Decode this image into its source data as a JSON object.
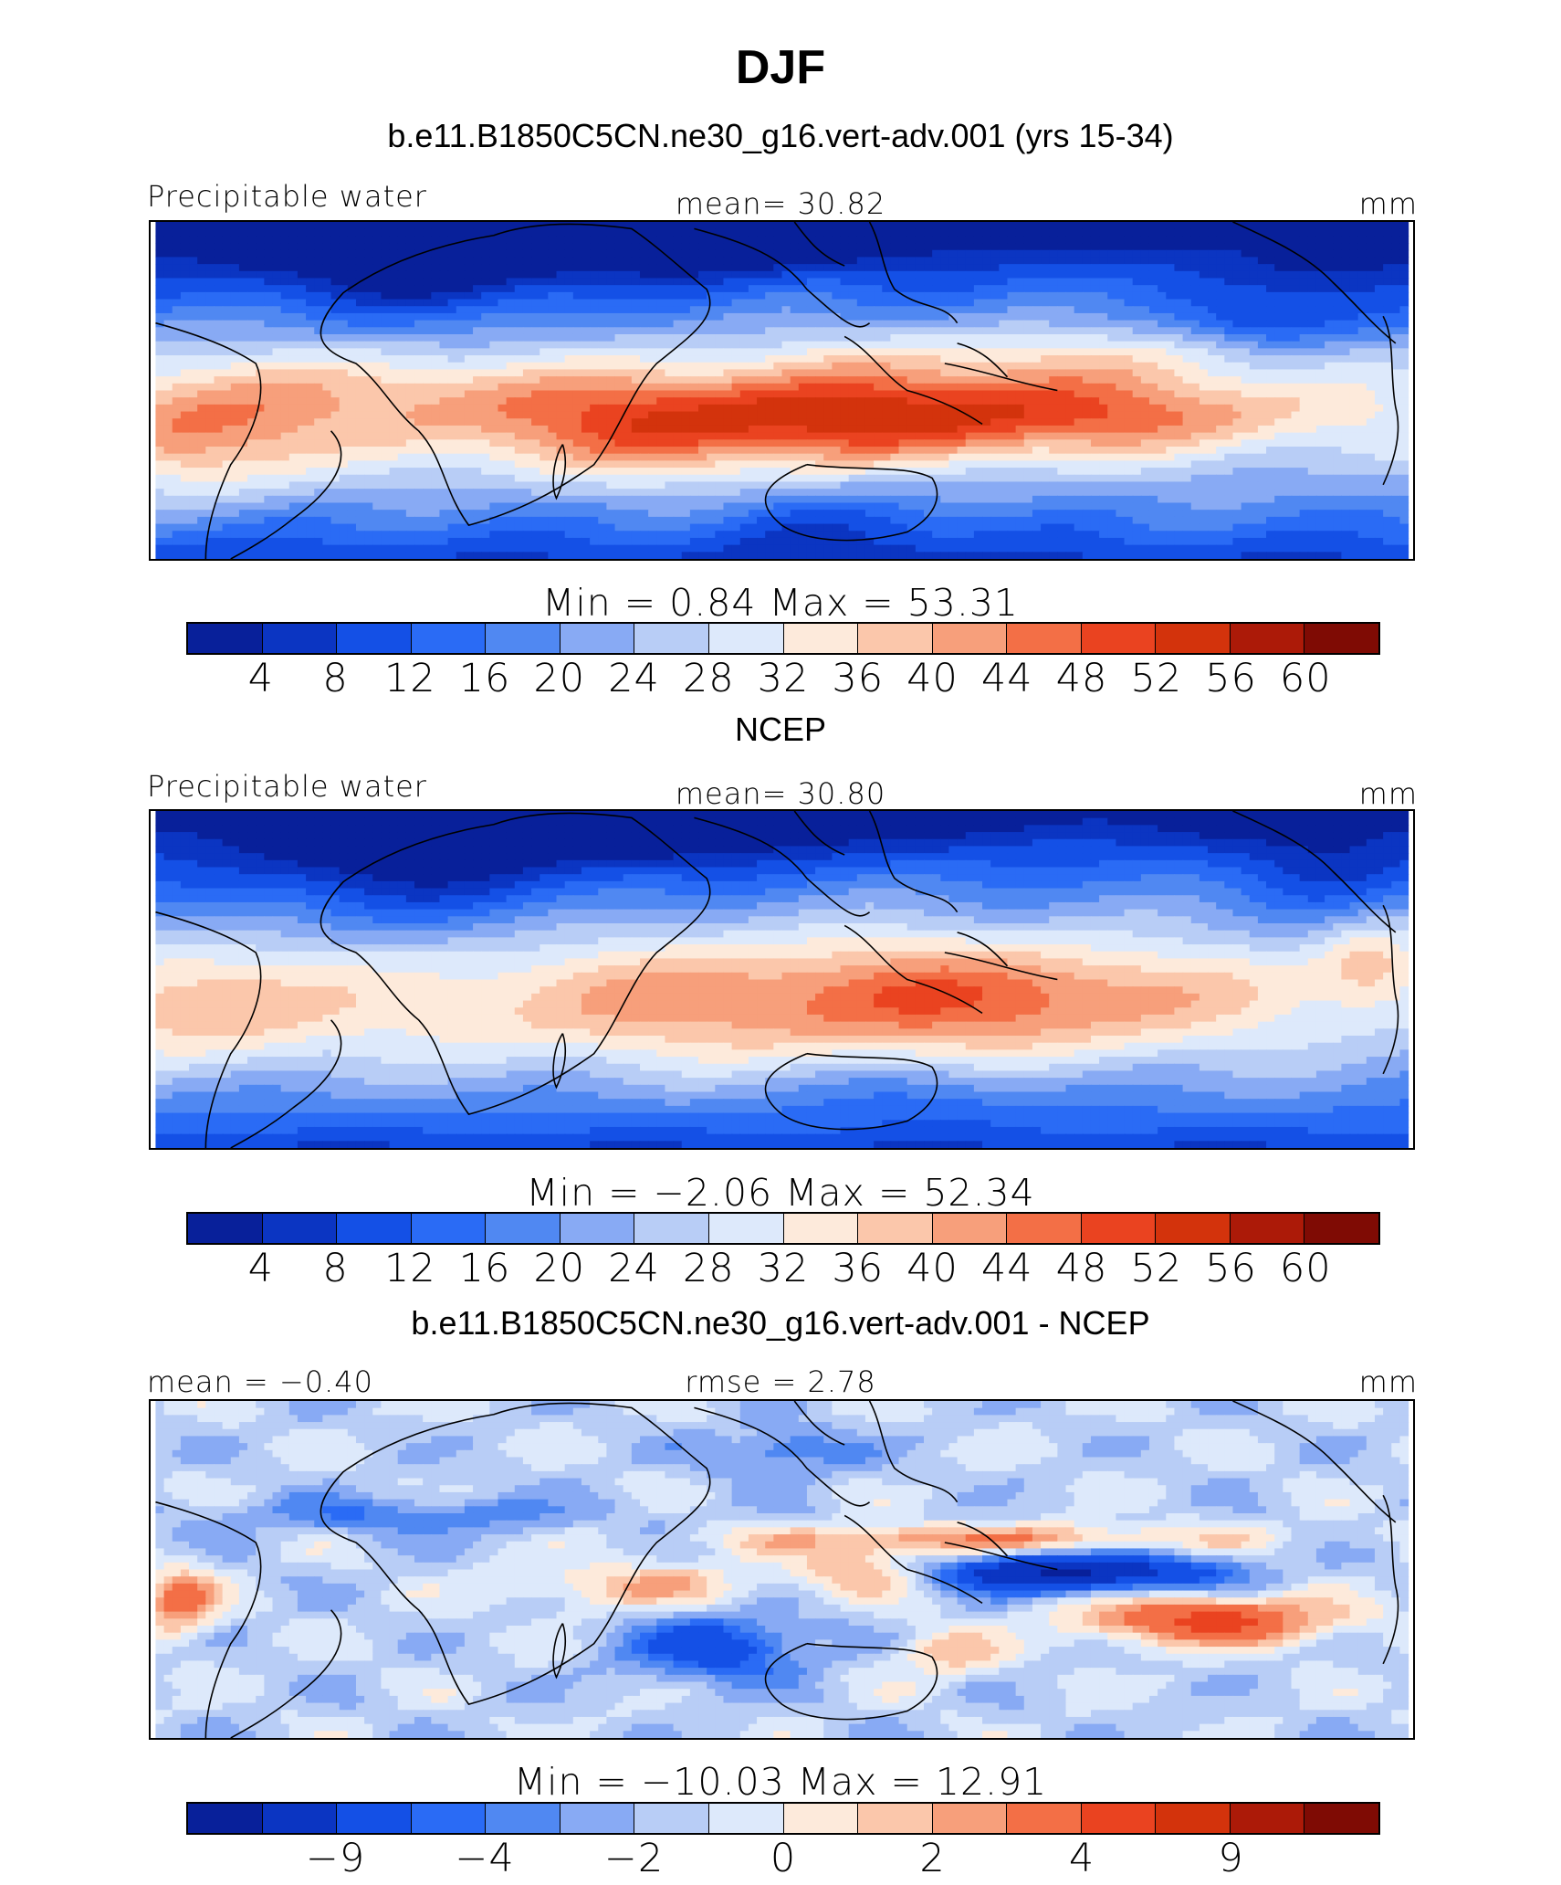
{
  "figure": {
    "title": "DJF"
  },
  "colors": [
    "#08209a",
    "#0b35c2",
    "#1450e6",
    "#2a6bf5",
    "#5088f2",
    "#88aaf4",
    "#b8cdf6",
    "#dde9fb",
    "#fdeadb",
    "#fbc7ab",
    "#f79f7b",
    "#f36f46",
    "#ea4320",
    "#d3330c",
    "#ac1a08",
    "#7f0b04"
  ],
  "panels": [
    {
      "title": "b.e11.B1850C5CN.ne30_g16.vert-adv.001 (yrs 15-34)",
      "left_label": "Precipitable water",
      "center_label": "mean=   30.82",
      "right_label": "mm",
      "minmax": "Min  =     0.84  Max  =    53.31",
      "ticks": [
        "4",
        "8",
        "12",
        "16",
        "20",
        "24",
        "28",
        "32",
        "36",
        "40",
        "44",
        "48",
        "52",
        "56",
        "60"
      ]
    },
    {
      "title": "NCEP",
      "left_label": "Precipitable water",
      "center_label": "mean=   30.80",
      "right_label": "mm",
      "minmax": "Min  =   −2.06  Max  =    52.34",
      "ticks": [
        "4",
        "8",
        "12",
        "16",
        "20",
        "24",
        "28",
        "32",
        "36",
        "40",
        "44",
        "48",
        "52",
        "56",
        "60"
      ]
    },
    {
      "title": "b.e11.B1850C5CN.ne30_g16.vert-adv.001 - NCEP",
      "left_label": "mean  =   −0.40",
      "center_label": "rmse  =     2.78",
      "right_label": "mm",
      "minmax": "Min  =  −10.03  Max  =    12.91",
      "ticks": [
        "−9",
        "−4",
        "−2",
        "0",
        "2",
        "4",
        "9"
      ]
    }
  ],
  "chart_data": [
    {
      "type": "heatmap",
      "title": "b.e11.B1850C5CN.ne30_g16.vert-adv.001 (yrs 15-34)",
      "variable": "Precipitable water",
      "units": "mm",
      "mean": 30.82,
      "min": 0.84,
      "max": 53.31,
      "levels": [
        4,
        8,
        12,
        16,
        20,
        24,
        28,
        32,
        36,
        40,
        44,
        48,
        52,
        56,
        60
      ],
      "field_key": "model"
    },
    {
      "type": "heatmap",
      "title": "NCEP",
      "variable": "Precipitable water",
      "units": "mm",
      "mean": 30.8,
      "min": -2.06,
      "max": 52.34,
      "levels": [
        4,
        8,
        12,
        16,
        20,
        24,
        28,
        32,
        36,
        40,
        44,
        48,
        52,
        56,
        60
      ],
      "field_key": "obs"
    },
    {
      "type": "heatmap",
      "title": "b.e11.B1850C5CN.ne30_g16.vert-adv.001 - NCEP",
      "units": "mm",
      "mean": -0.4,
      "rmse": 2.78,
      "min": -10.03,
      "max": 12.91,
      "levels": [
        -9,
        -4,
        -2,
        0,
        2,
        4,
        9
      ],
      "field_key": "diff"
    }
  ]
}
